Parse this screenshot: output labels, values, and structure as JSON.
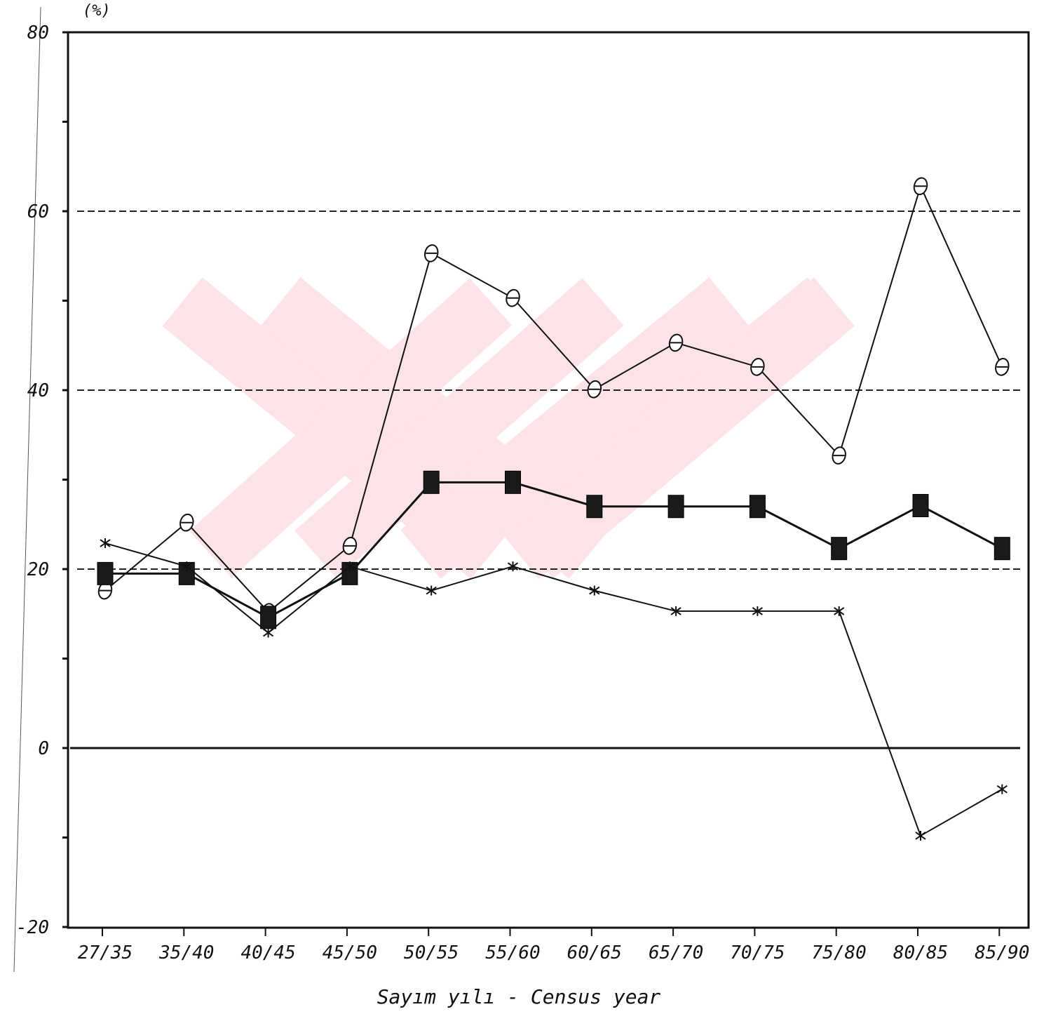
{
  "chart_data": {
    "type": "line",
    "unit_label": "(%)",
    "xlabel": "Sayım yılı - Census year",
    "ylabel": "",
    "categories": [
      "27/35",
      "35/40",
      "40/45",
      "45/50",
      "50/55",
      "55/60",
      "60/65",
      "65/70",
      "70/75",
      "75/80",
      "80/85",
      "85/90"
    ],
    "y_ticks": [
      -20,
      0,
      20,
      40,
      60,
      80
    ],
    "ylim": [
      -20,
      80
    ],
    "reference_lines": [
      20,
      40,
      60
    ],
    "zero_line": 0,
    "series": [
      {
        "marker": "theta",
        "values": [
          17.6,
          25.2,
          15.2,
          22.6,
          55.3,
          50.3,
          40.1,
          45.3,
          42.6,
          32.7,
          62.8,
          42.6
        ]
      },
      {
        "marker": "square",
        "values": [
          19.5,
          19.5,
          14.6,
          19.5,
          29.7,
          29.7,
          27.0,
          27.0,
          27.0,
          22.3,
          27.1,
          22.3
        ]
      },
      {
        "marker": "asterisk",
        "values": [
          22.9,
          20.3,
          12.9,
          20.3,
          17.6,
          20.3,
          17.6,
          15.3,
          15.3,
          15.3,
          -9.8,
          -4.6
        ]
      }
    ],
    "colors": {
      "line": "#111111",
      "frame": "#111111",
      "watermark": "#fbe3e7"
    }
  }
}
